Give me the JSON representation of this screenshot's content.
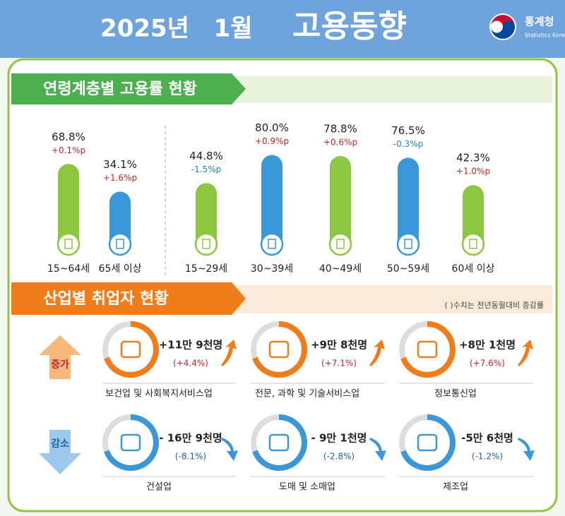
{
  "header": {
    "title_year": "2025년",
    "title_month": "1월",
    "title_main": "고용동향",
    "logo_name": "통계청",
    "logo_sub": "Statistics Korea"
  },
  "chart_data": {
    "type": "bar",
    "title": "연령계층별 고용률 현황",
    "categories": [
      "15~64세",
      "65세 이상",
      "15~29세",
      "30~39세",
      "40~49세",
      "50~59세",
      "60세 이상"
    ],
    "values": [
      68.8,
      34.1,
      44.8,
      80.0,
      78.8,
      76.5,
      42.3
    ],
    "value_labels": [
      "68.8%",
      "34.1%",
      "44.8%",
      "80.0%",
      "78.8%",
      "76.5%",
      "42.3%"
    ],
    "change_labels": [
      "+0.1%p",
      "+1.6%p",
      "-1.5%p",
      "+0.9%p",
      "+0.6%p",
      "-0.3%p",
      "+1.0%p"
    ],
    "colors": [
      "#8dc63f",
      "#3a98d8",
      "#8dc63f",
      "#3a98d8",
      "#8dc63f",
      "#3a98d8",
      "#8dc63f"
    ]
  },
  "industry": {
    "title": "산업별 취업자 현황",
    "note": "( )수치는 전년동월대비 증감률",
    "groups": [
      {
        "label": "증가",
        "items": [
          {
            "name": "보건업 및 사회복지서비스업",
            "change": "+11만 9천명",
            "rate": "(+4.4%)"
          },
          {
            "name": "전문, 과학 및 기술서비스업",
            "change": "+9만 8천명",
            "rate": "(+7.1%)"
          },
          {
            "name": "정보통신업",
            "change": "+8만 1천명",
            "rate": "(+7.6%)"
          }
        ]
      },
      {
        "label": "감소",
        "items": [
          {
            "name": "건설업",
            "change": "- 16만 9천명",
            "rate": "(-8.1%)"
          },
          {
            "name": "도매 및 소매업",
            "change": "- 9만 1천명",
            "rate": "(-2.8%)"
          },
          {
            "name": "제조업",
            "change": "-5만 6천명",
            "rate": "(-1.2%)"
          }
        ]
      }
    ]
  }
}
